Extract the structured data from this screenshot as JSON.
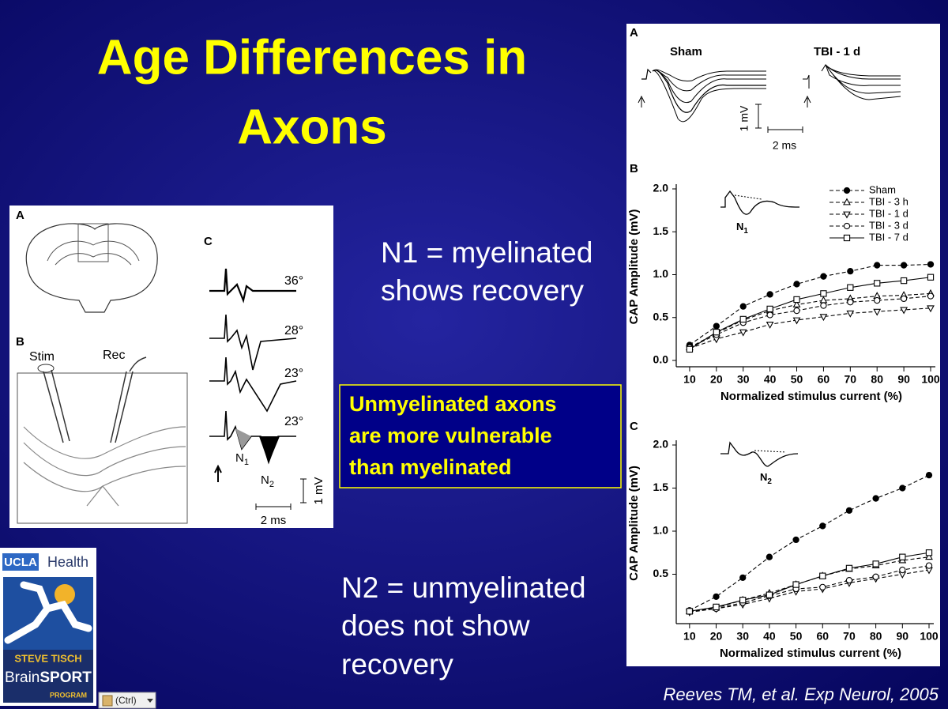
{
  "slide": {
    "title": [
      "Age Differences in",
      "Axons"
    ],
    "note_n1": [
      "N1 = myelinated",
      "shows recovery"
    ],
    "callout": [
      "Unmyelinated axons",
      "are more vulnerable",
      "than myelinated"
    ],
    "note_n2": [
      "N2 = unmyelinated",
      "does not show",
      "recovery"
    ],
    "citation": "Reeves TM, et al. Exp Neurol, 2005"
  },
  "logo": {
    "ucla": "UCLA",
    "health": "Health",
    "steve_tisch": "STEVE TISCH",
    "brain": "Brain",
    "sport": "SPORT",
    "program": "PROGRAM"
  },
  "paste_button": "(Ctrl)",
  "left_figure": {
    "panel_a": "A",
    "panel_b": "B",
    "panel_c": "C",
    "stim": "Stim",
    "rec": "Rec",
    "temps": [
      "36°",
      "28°",
      "23°",
      "23°"
    ],
    "n1": "N",
    "n1_sub": "1",
    "n2": "N",
    "n2_sub": "2",
    "scale_v": "1 mV",
    "scale_t": "2 ms"
  },
  "right_figure": {
    "panel_a": "A",
    "sham": "Sham",
    "tbi": "TBI - 1 d",
    "scale_v": "1 mV",
    "scale_t": "2 ms",
    "panel_b": "B",
    "panel_c": "C",
    "inset_b": "N",
    "inset_b_sub": "1",
    "inset_c": "N",
    "inset_c_sub": "2"
  },
  "chart_data": [
    {
      "type": "line",
      "x_label": "Normalized stimulus  current (%)",
      "y_label": "CAP Amplitude  (mV)",
      "x": [
        10,
        20,
        30,
        40,
        50,
        60,
        70,
        80,
        90,
        100
      ],
      "xlim": [
        5,
        100
      ],
      "xticks": [
        10,
        20,
        30,
        40,
        50,
        60,
        70,
        80,
        90,
        100
      ],
      "ylim": [
        0,
        2
      ],
      "yticks": [
        {
          "value": 0,
          "label": "0.0"
        },
        0.5,
        {
          "value": 1,
          "label": "1.0"
        },
        1.5,
        {
          "value": 2,
          "label": "2.0"
        }
      ],
      "legend": "upper-right",
      "series": [
        {
          "name": "Sham",
          "color": "#000000",
          "marker": "circle-filled",
          "dashed": true,
          "values": [
            0.18,
            0.4,
            0.63,
            0.77,
            0.89,
            0.98,
            1.04,
            1.11,
            1.11,
            1.12
          ]
        },
        {
          "name": "TBI - 3 h",
          "color": "#000000",
          "marker": "triangle-up",
          "dashed": true,
          "values": [
            0.15,
            0.32,
            0.47,
            0.58,
            0.65,
            0.7,
            0.72,
            0.75,
            0.76,
            0.78
          ]
        },
        {
          "name": "TBI - 1 d",
          "color": "#000000",
          "marker": "triangle-down",
          "dashed": true,
          "values": [
            0.14,
            0.25,
            0.33,
            0.42,
            0.47,
            0.51,
            0.55,
            0.57,
            0.59,
            0.61
          ]
        },
        {
          "name": "TBI - 3 d",
          "color": "#000000",
          "marker": "circle-open",
          "dashed": true,
          "values": [
            0.15,
            0.3,
            0.44,
            0.53,
            0.58,
            0.64,
            0.68,
            0.7,
            0.72,
            0.75
          ]
        },
        {
          "name": "TBI - 7 d",
          "color": "#000000",
          "marker": "square-open",
          "dashed": false,
          "values": [
            0.13,
            0.33,
            0.48,
            0.6,
            0.71,
            0.78,
            0.85,
            0.9,
            0.93,
            0.97
          ]
        }
      ]
    },
    {
      "type": "line",
      "x_label": "Normalized stimulus  current (%)",
      "y_label": "CAP Amplitude  (mV)",
      "x": [
        10,
        20,
        30,
        40,
        50,
        60,
        70,
        80,
        90,
        100
      ],
      "xlim": [
        5,
        100
      ],
      "xticks": [
        10,
        20,
        30,
        40,
        50,
        60,
        70,
        80,
        90,
        100
      ],
      "ylim": [
        0,
        2
      ],
      "yticks": [
        0.5,
        {
          "value": 1,
          "label": "1.0"
        },
        1.5,
        {
          "value": 2,
          "label": "2.0"
        }
      ],
      "series": [
        {
          "color": "#000000",
          "marker": "circle-filled",
          "dashed": true,
          "values": [
            0.08,
            0.24,
            0.46,
            0.7,
            0.9,
            1.06,
            1.24,
            1.38,
            1.5,
            1.65
          ]
        },
        {
          "color": "#000000",
          "marker": "triangle-up",
          "dashed": true,
          "values": [
            0.07,
            0.11,
            0.2,
            0.28,
            0.38,
            0.48,
            0.56,
            0.6,
            0.66,
            0.7
          ]
        },
        {
          "color": "#000000",
          "marker": "triangle-down",
          "dashed": true,
          "values": [
            0.06,
            0.1,
            0.15,
            0.22,
            0.3,
            0.33,
            0.4,
            0.45,
            0.5,
            0.55
          ]
        },
        {
          "color": "#000000",
          "marker": "circle-open",
          "dashed": true,
          "values": [
            0.07,
            0.1,
            0.17,
            0.25,
            0.33,
            0.35,
            0.43,
            0.47,
            0.55,
            0.6
          ]
        },
        {
          "color": "#000000",
          "marker": "square-open",
          "dashed": false,
          "values": [
            0.07,
            0.12,
            0.2,
            0.26,
            0.38,
            0.48,
            0.57,
            0.62,
            0.7,
            0.75
          ]
        }
      ]
    }
  ]
}
